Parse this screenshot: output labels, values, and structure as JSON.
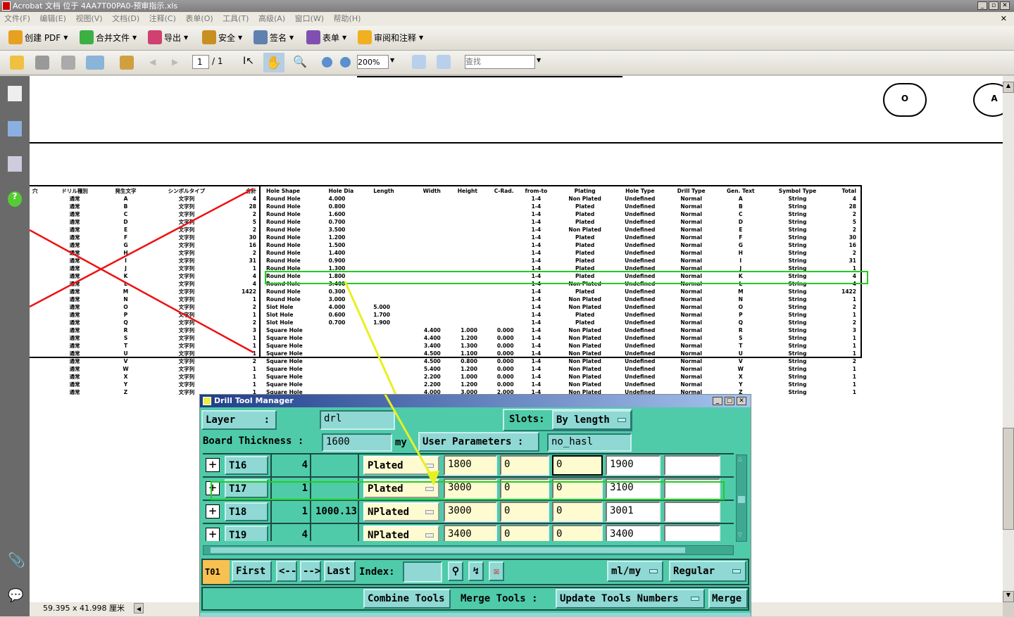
{
  "window": {
    "title": "Acrobat 文档 位于 4AA7T00PA0-预审指示.xls"
  },
  "menu": [
    "文件(F)",
    "编辑(E)",
    "视图(V)",
    "文档(D)",
    "注释(C)",
    "表单(O)",
    "工具(T)",
    "高级(A)",
    "窗口(W)",
    "帮助(H)"
  ],
  "toolbar1": [
    {
      "label": "创建 PDF",
      "icon": "create-pdf-icon",
      "color": "#e8a020"
    },
    {
      "label": "合并文件",
      "icon": "combine-files-icon",
      "color": "#3cb043"
    },
    {
      "label": "导出",
      "icon": "export-icon",
      "color": "#d04070"
    },
    {
      "label": "安全",
      "icon": "lock-icon",
      "color": "#c89020"
    },
    {
      "label": "签名",
      "icon": "pen-icon",
      "color": "#6080b0"
    },
    {
      "label": "表单",
      "icon": "form-icon",
      "color": "#8050b0"
    },
    {
      "label": "审阅和注释",
      "icon": "comment-icon",
      "color": "#f0b020"
    }
  ],
  "toolbar2": {
    "page_current": "1",
    "page_total": "/ 1",
    "zoom": "200%",
    "search_placeholder": "查找"
  },
  "status": {
    "page_size": "59.395 x 41.998 厘米"
  },
  "pdf": {
    "circles": [
      "O",
      "A"
    ],
    "left_headers": [
      "穴",
      "ドリル種別",
      "発生文字",
      "シンボルタイプ",
      "合計"
    ],
    "left_rows": [
      [
        "通常",
        "A",
        "文字列",
        "4"
      ],
      [
        "通常",
        "B",
        "文字列",
        "28"
      ],
      [
        "通常",
        "C",
        "文字列",
        "2"
      ],
      [
        "通常",
        "D",
        "文字列",
        "5"
      ],
      [
        "通常",
        "E",
        "文字列",
        "2"
      ],
      [
        "通常",
        "F",
        "文字列",
        "30"
      ],
      [
        "通常",
        "G",
        "文字列",
        "16"
      ],
      [
        "通常",
        "H",
        "文字列",
        "2"
      ],
      [
        "通常",
        "I",
        "文字列",
        "31"
      ],
      [
        "通常",
        "J",
        "文字列",
        "1"
      ],
      [
        "通常",
        "K",
        "文字列",
        "4"
      ],
      [
        "通常",
        "L",
        "文字列",
        "4"
      ],
      [
        "通常",
        "M",
        "文字列",
        "1422"
      ],
      [
        "通常",
        "N",
        "文字列",
        "1"
      ],
      [
        "通常",
        "O",
        "文字列",
        "2"
      ],
      [
        "通常",
        "P",
        "文字列",
        "1"
      ],
      [
        "通常",
        "Q",
        "文字列",
        "2"
      ],
      [
        "通常",
        "R",
        "文字列",
        "3"
      ],
      [
        "通常",
        "S",
        "文字列",
        "1"
      ],
      [
        "通常",
        "T",
        "文字列",
        "1"
      ],
      [
        "通常",
        "U",
        "文字列",
        "1"
      ],
      [
        "通常",
        "V",
        "文字列",
        "2"
      ],
      [
        "通常",
        "W",
        "文字列",
        "1"
      ],
      [
        "通常",
        "X",
        "文字列",
        "1"
      ],
      [
        "通常",
        "Y",
        "文字列",
        "1"
      ],
      [
        "通常",
        "Z",
        "文字列",
        "1"
      ]
    ],
    "right_headers": [
      "Hole Shape",
      "Hole Dia",
      "Length",
      "Width",
      "Height",
      "C-Rad.",
      "from-to",
      "Plating",
      "Hole Type",
      "Drill Type",
      "Gen. Text",
      "Symbol Type",
      "Total"
    ],
    "right_rows": [
      [
        "Round Hole",
        "4.000",
        "",
        "",
        "",
        "",
        "1-4",
        "Non Plated",
        "Undefined",
        "Normal",
        "A",
        "String",
        "4"
      ],
      [
        "Round Hole",
        "0.800",
        "",
        "",
        "",
        "",
        "1-4",
        "Plated",
        "Undefined",
        "Normal",
        "B",
        "String",
        "28"
      ],
      [
        "Round Hole",
        "1.600",
        "",
        "",
        "",
        "",
        "1-4",
        "Plated",
        "Undefined",
        "Normal",
        "C",
        "String",
        "2"
      ],
      [
        "Round Hole",
        "0.700",
        "",
        "",
        "",
        "",
        "1-4",
        "Plated",
        "Undefined",
        "Normal",
        "D",
        "String",
        "5"
      ],
      [
        "Round Hole",
        "3.500",
        "",
        "",
        "",
        "",
        "1-4",
        "Non Plated",
        "Undefined",
        "Normal",
        "E",
        "String",
        "2"
      ],
      [
        "Round Hole",
        "1.200",
        "",
        "",
        "",
        "",
        "1-4",
        "Plated",
        "Undefined",
        "Normal",
        "F",
        "String",
        "30"
      ],
      [
        "Round Hole",
        "1.500",
        "",
        "",
        "",
        "",
        "1-4",
        "Plated",
        "Undefined",
        "Normal",
        "G",
        "String",
        "16"
      ],
      [
        "Round Hole",
        "1.400",
        "",
        "",
        "",
        "",
        "1-4",
        "Plated",
        "Undefined",
        "Normal",
        "H",
        "String",
        "2"
      ],
      [
        "Round Hole",
        "0.900",
        "",
        "",
        "",
        "",
        "1-4",
        "Plated",
        "Undefined",
        "Normal",
        "I",
        "String",
        "31"
      ],
      [
        "Round Hole",
        "1.300",
        "",
        "",
        "",
        "",
        "1-4",
        "Plated",
        "Undefined",
        "Normal",
        "J",
        "String",
        "1"
      ],
      [
        "Round Hole",
        "1.800",
        "",
        "",
        "",
        "",
        "1-4",
        "Plated",
        "Undefined",
        "Normal",
        "K",
        "String",
        "4"
      ],
      [
        "Round Hole",
        "3.400",
        "",
        "",
        "",
        "",
        "1-4",
        "Non Plated",
        "Undefined",
        "Normal",
        "L",
        "String",
        "4"
      ],
      [
        "Round Hole",
        "0.300",
        "",
        "",
        "",
        "",
        "1-4",
        "Plated",
        "Undefined",
        "Normal",
        "M",
        "String",
        "1422"
      ],
      [
        "Round Hole",
        "3.000",
        "",
        "",
        "",
        "",
        "1-4",
        "Non Plated",
        "Undefined",
        "Normal",
        "N",
        "String",
        "1"
      ],
      [
        "Slot Hole",
        "4.000",
        "5.000",
        "",
        "",
        "",
        "1-4",
        "Non Plated",
        "Undefined",
        "Normal",
        "O",
        "String",
        "2"
      ],
      [
        "Slot Hole",
        "0.600",
        "1.700",
        "",
        "",
        "",
        "1-4",
        "Plated",
        "Undefined",
        "Normal",
        "P",
        "String",
        "1"
      ],
      [
        "Slot Hole",
        "0.700",
        "1.900",
        "",
        "",
        "",
        "1-4",
        "Plated",
        "Undefined",
        "Normal",
        "Q",
        "String",
        "2"
      ],
      [
        "Square Hole",
        "",
        "",
        "4.400",
        "1.000",
        "0.000",
        "1-4",
        "Non Plated",
        "Undefined",
        "Normal",
        "R",
        "String",
        "3"
      ],
      [
        "Square Hole",
        "",
        "",
        "4.400",
        "1.200",
        "0.000",
        "1-4",
        "Non Plated",
        "Undefined",
        "Normal",
        "S",
        "String",
        "1"
      ],
      [
        "Square Hole",
        "",
        "",
        "3.400",
        "1.300",
        "0.000",
        "1-4",
        "Non Plated",
        "Undefined",
        "Normal",
        "T",
        "String",
        "1"
      ],
      [
        "Square Hole",
        "",
        "",
        "4.500",
        "1.100",
        "0.000",
        "1-4",
        "Non Plated",
        "Undefined",
        "Normal",
        "U",
        "String",
        "1"
      ],
      [
        "Square Hole",
        "",
        "",
        "4.500",
        "0.800",
        "0.000",
        "1-4",
        "Non Plated",
        "Undefined",
        "Normal",
        "V",
        "String",
        "2"
      ],
      [
        "Square Hole",
        "",
        "",
        "5.400",
        "1.200",
        "0.000",
        "1-4",
        "Non Plated",
        "Undefined",
        "Normal",
        "W",
        "String",
        "1"
      ],
      [
        "Square Hole",
        "",
        "",
        "2.200",
        "1.000",
        "0.000",
        "1-4",
        "Non Plated",
        "Undefined",
        "Normal",
        "X",
        "String",
        "1"
      ],
      [
        "Square Hole",
        "",
        "",
        "2.200",
        "1.200",
        "0.000",
        "1-4",
        "Non Plated",
        "Undefined",
        "Normal",
        "Y",
        "String",
        "1"
      ],
      [
        "Square Hole",
        "",
        "",
        "4.000",
        "3.000",
        "2.000",
        "1-4",
        "Non Plated",
        "Undefined",
        "Normal",
        "Z",
        "String",
        "1"
      ]
    ],
    "highlight_color": "#22cc22",
    "arrow_color": "#e8f020",
    "cross_color": "#ee1111"
  },
  "dialog": {
    "title": "Drill Tool Manager",
    "layer_label": "Layer",
    "layer_colon": ":",
    "layer_value": "drl",
    "slots_label": "Slots:",
    "slots_value": "By length",
    "thickness_label": "Board Thickness :",
    "thickness_value": "1600",
    "thickness_unit": "my",
    "user_params_label": "User Parameters :",
    "user_params_value": "no_hasl",
    "tools": [
      {
        "name": "T16",
        "count": "4",
        "extra": "",
        "plating": "Plated",
        "v1": "1800",
        "v2": "0",
        "v3": "0",
        "v4": "1900",
        "v5": ""
      },
      {
        "name": "T17",
        "count": "1",
        "extra": "",
        "plating": "Plated",
        "v1": "3000",
        "v2": "0",
        "v3": "0",
        "v4": "3100",
        "v5": ""
      },
      {
        "name": "T18",
        "count": "1",
        "extra": "1000.13",
        "plating": "NPlated",
        "v1": "3000",
        "v2": "0",
        "v3": "0",
        "v4": "3001",
        "v5": ""
      },
      {
        "name": "T19",
        "count": "4",
        "extra": "",
        "plating": "NPlated",
        "v1": "3400",
        "v2": "0",
        "v3": "0",
        "v4": "3400",
        "v5": ""
      }
    ],
    "current_tool": "T01",
    "nav": {
      "first": "First",
      "prev": "<--",
      "next": "-->",
      "last": "Last",
      "index_label": "Index:",
      "index_value": ""
    },
    "units": "ml/my",
    "mode": "Regular",
    "combine": "Combine Tools",
    "merge_label": "Merge Tools :",
    "merge_option": "Update Tools Numbers",
    "merge_button": "Merge",
    "accent": "#4fcba9",
    "current_tool_color": "#f8c050"
  }
}
